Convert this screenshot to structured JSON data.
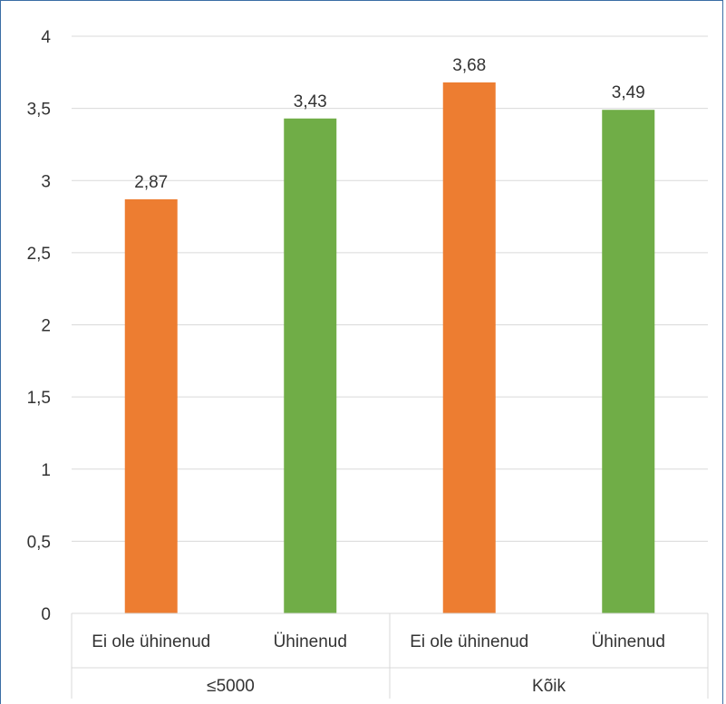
{
  "chart_data": {
    "type": "bar",
    "title": "",
    "xlabel": "",
    "ylabel": "",
    "ylim": [
      0,
      4
    ],
    "yticks": [
      "0",
      "0,5",
      "1",
      "1,5",
      "2",
      "2,5",
      "3",
      "3,5",
      "4"
    ],
    "grid": true,
    "legend": "none",
    "groups": [
      "≤5000",
      "Kõik"
    ],
    "categories": [
      "Ei ole ühinenud",
      "Ühinenud",
      "Ei ole ühinenud",
      "Ühinenud"
    ],
    "values": [
      2.87,
      3.43,
      3.68,
      3.49
    ],
    "value_labels": [
      "2,87",
      "3,43",
      "3,68",
      "3,49"
    ],
    "colors": {
      "Ei ole ühinenud": "#ed7d31",
      "Ühinenud": "#70ad47",
      "grid": "#d9d9d9",
      "frame": "#3b6ea5"
    }
  }
}
